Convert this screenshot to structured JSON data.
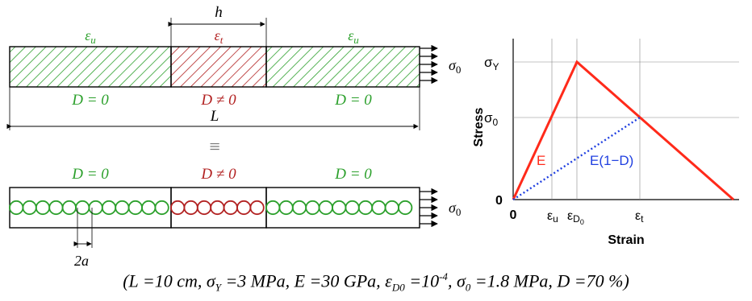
{
  "colors": {
    "green": "#2ca02c",
    "red": "#b22222",
    "bright_red": "#ff2a1a",
    "blue": "#1f3fe0",
    "black": "#000000"
  },
  "bar_top": {
    "left_strain": "ε",
    "left_strain_sub": "u",
    "mid_strain": "ε",
    "mid_strain_sub": "t",
    "right_strain": "ε",
    "right_strain_sub": "u",
    "width_label": "h",
    "left_damage": "D = 0",
    "mid_damage": "D ≠ 0",
    "right_damage": "D = 0",
    "length_label": "L",
    "stress_label": "σ",
    "stress_sub": "0"
  },
  "equiv": "≡",
  "bar_bottom": {
    "left_damage": "D = 0",
    "mid_damage": "D ≠ 0",
    "right_damage": "D = 0",
    "stress_label": "σ",
    "stress_sub": "0",
    "spacing_label": "2a"
  },
  "chart": {
    "y_axis_title": "Stress",
    "x_axis_title": "Strain",
    "y_ticks": {
      "sigma_y": "σ",
      "sigma_y_sub": "Y",
      "sigma_0": "σ",
      "sigma_0_sub": "0",
      "zero": "0"
    },
    "x_ticks": {
      "zero": "0",
      "eps_u": "ε",
      "eps_u_sub": "u",
      "eps_d": "ε",
      "eps_d_sub": "D",
      "eps_d_subsub": "0",
      "eps_t": "ε",
      "eps_t_sub": "t"
    },
    "label_E": "E",
    "label_ED": "E(1−D)"
  },
  "caption": "(L =10 cm, σY =3 MPa, E =30 GPa, εD0 =10-4, σ0 =1.8 MPa, D =70 %)",
  "caption_parts": {
    "open": "(L =10 cm, σ",
    "sub1": "Y",
    "p2": " =3 MPa, E =30 GPa, ε",
    "sub2": "D0",
    "p3": " =10",
    "sup": "-4",
    "p4": ", σ",
    "sub3": "0",
    "p5": " =1.8 MPa, D =70 %)"
  }
}
